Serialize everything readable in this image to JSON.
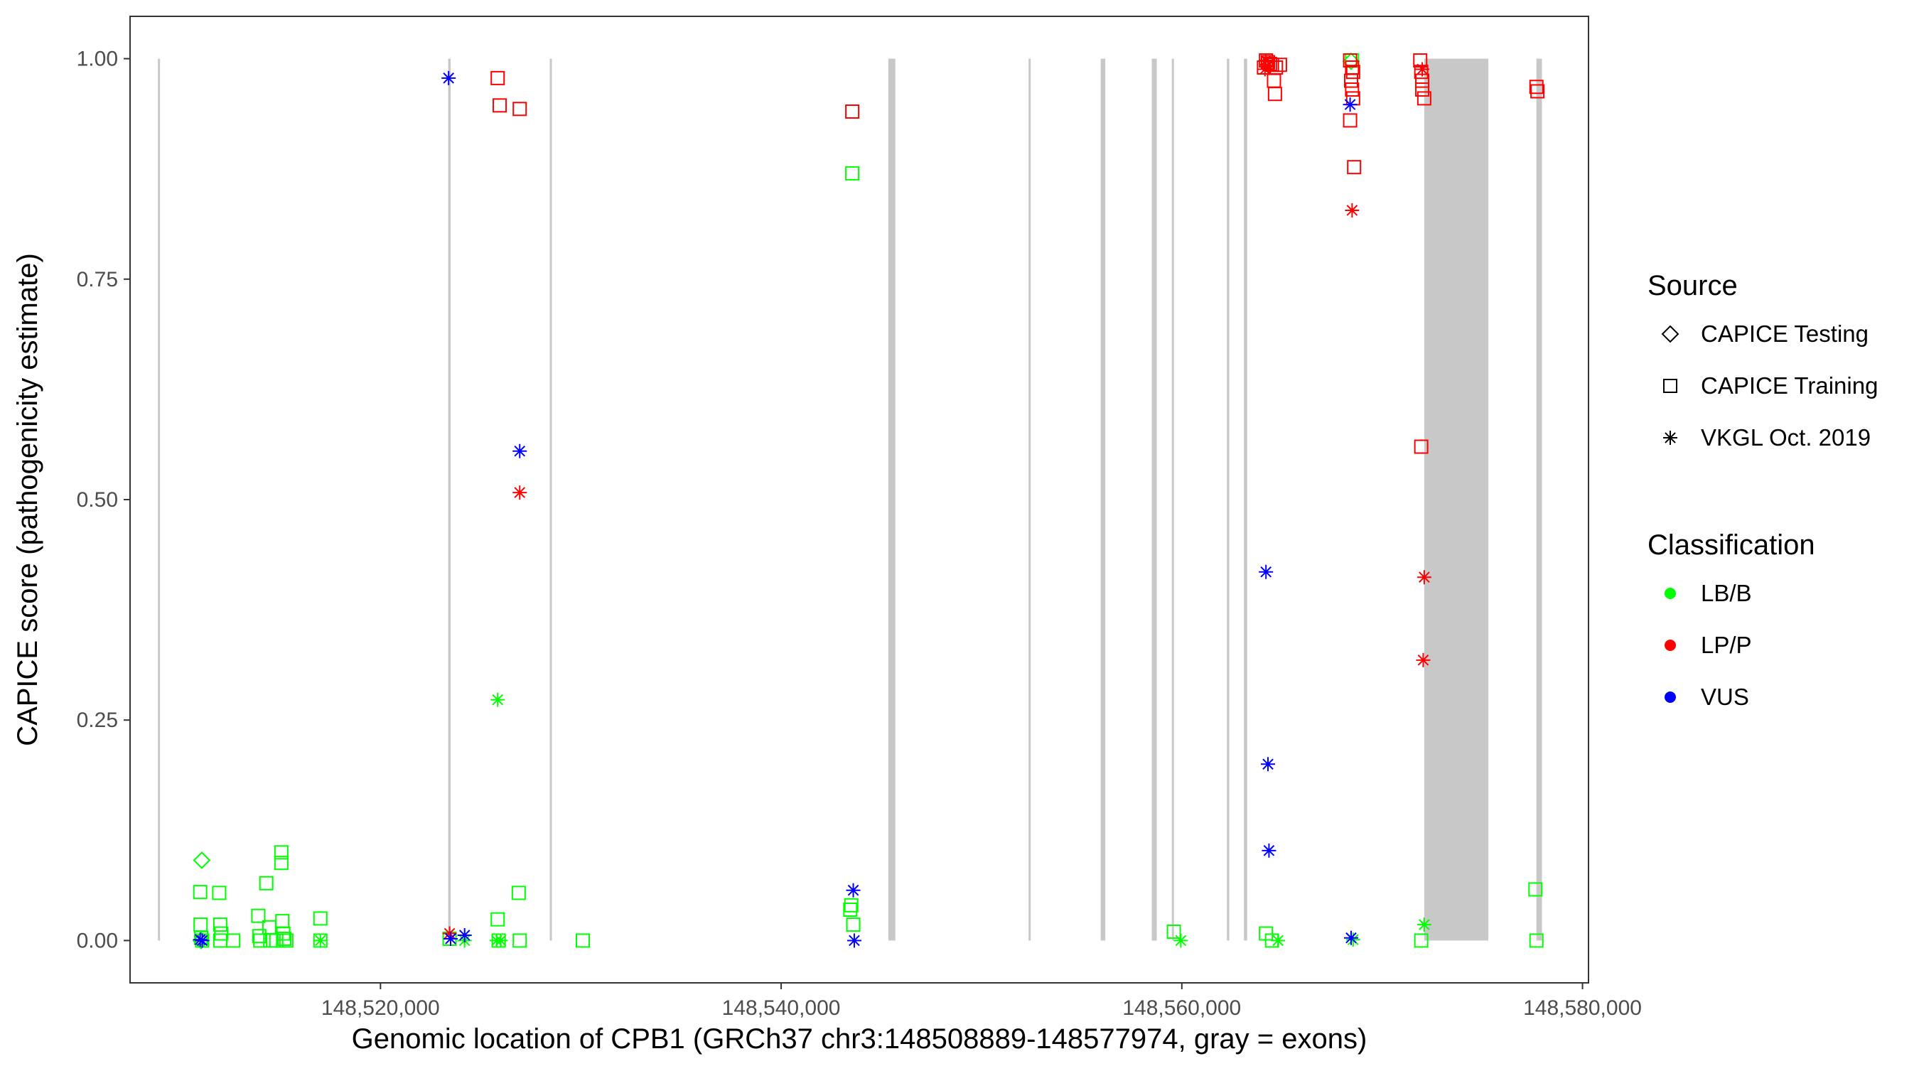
{
  "chart_data": {
    "type": "scatter",
    "title": "",
    "xlabel": "Genomic location of CPB1 (GRCh37 chr3:148508889-148577974, gray = exons)",
    "ylabel": "CAPICE score (pathogenicity estimate)",
    "xlim": [
      148507500,
      148580300
    ],
    "ylim": [
      -0.048,
      1.048
    ],
    "x_ticks": [
      {
        "value": 148520000,
        "label": "148,520,000"
      },
      {
        "value": 148540000,
        "label": "148,540,000"
      },
      {
        "value": 148560000,
        "label": "148,560,000"
      },
      {
        "value": 148580000,
        "label": "148,580,000"
      }
    ],
    "y_ticks": [
      {
        "value": 0.0,
        "label": "0.00"
      },
      {
        "value": 0.25,
        "label": "0.25"
      },
      {
        "value": 0.5,
        "label": "0.50"
      },
      {
        "value": 0.75,
        "label": "0.75"
      },
      {
        "value": 1.0,
        "label": "1.00"
      }
    ],
    "grid": false,
    "exons": [
      [
        148508889,
        148508980
      ],
      [
        148523380,
        148523500
      ],
      [
        148528450,
        148528530
      ],
      [
        148545350,
        148545700
      ],
      [
        148552350,
        148552430
      ],
      [
        148555950,
        148556180
      ],
      [
        148558500,
        148558750
      ],
      [
        148559500,
        148559580
      ],
      [
        148562250,
        148562370
      ],
      [
        148563100,
        148563260
      ],
      [
        148572100,
        148575300
      ],
      [
        148577700,
        148577974
      ]
    ],
    "colors": {
      "LB/B": "#00ff00",
      "LP/P": "#ff0000",
      "VUS": "#0000ff",
      "exon": "#c8c8c8"
    },
    "legend": {
      "placement": "right",
      "source": {
        "title": "Source",
        "entries": [
          {
            "label": "CAPICE Testing",
            "shape": "diamond"
          },
          {
            "label": "CAPICE Training",
            "shape": "square"
          },
          {
            "label": "VKGL Oct. 2019",
            "shape": "asterisk"
          }
        ]
      },
      "classification": {
        "title": "Classification",
        "entries": [
          {
            "label": "LB/B",
            "color": "#00ff00"
          },
          {
            "label": "LP/P",
            "color": "#ff0000"
          },
          {
            "label": "VUS",
            "color": "#0000ff"
          }
        ]
      }
    },
    "series": [
      {
        "source": "CAPICE Testing",
        "class": "LB/B",
        "points": [
          [
            148511080,
            0.091
          ],
          [
            148511050,
            0.0
          ],
          [
            148568450,
            0.997
          ]
        ]
      },
      {
        "source": "CAPICE Training",
        "class": "LB/B",
        "points": [
          [
            148511000,
            0.055
          ],
          [
            148511020,
            0.018
          ],
          [
            148511050,
            0.003
          ],
          [
            148511100,
            0.0
          ],
          [
            148511950,
            0.054
          ],
          [
            148512000,
            0.018
          ],
          [
            148512050,
            0.008
          ],
          [
            148512000,
            0.0
          ],
          [
            148512650,
            0.0
          ],
          [
            148513900,
            0.028
          ],
          [
            148513950,
            0.005
          ],
          [
            148514000,
            0.0
          ],
          [
            148514300,
            0.065
          ],
          [
            148514450,
            0.015
          ],
          [
            148514500,
            0.0
          ],
          [
            148514800,
            0.0
          ],
          [
            148515050,
            0.1
          ],
          [
            148515050,
            0.088
          ],
          [
            148515100,
            0.022
          ],
          [
            148515150,
            0.008
          ],
          [
            148515200,
            0.002
          ],
          [
            148515300,
            0.0
          ],
          [
            148517000,
            0.025
          ],
          [
            148517000,
            0.0
          ],
          [
            148523450,
            0.002
          ],
          [
            148525850,
            0.024
          ],
          [
            148525900,
            0.0
          ],
          [
            148526900,
            0.054
          ],
          [
            148526950,
            0.0
          ],
          [
            148530100,
            0.0
          ],
          [
            148543550,
            0.87
          ],
          [
            148543500,
            0.04
          ],
          [
            148543450,
            0.035
          ],
          [
            148543600,
            0.018
          ],
          [
            148559600,
            0.01
          ],
          [
            148564200,
            0.008
          ],
          [
            148564500,
            0.0
          ],
          [
            148568500,
            0.998
          ],
          [
            148571950,
            0.0
          ],
          [
            148577650,
            0.058
          ],
          [
            148577700,
            0.0
          ]
        ]
      },
      {
        "source": "CAPICE Training",
        "class": "LP/P",
        "points": [
          [
            148525850,
            0.978
          ],
          [
            148525950,
            0.947
          ],
          [
            148526950,
            0.943
          ],
          [
            148543550,
            0.94
          ],
          [
            148564200,
            0.998
          ],
          [
            148564300,
            0.996
          ],
          [
            148564400,
            0.994
          ],
          [
            148564500,
            0.993
          ],
          [
            148564100,
            0.99
          ],
          [
            148564700,
            0.99
          ],
          [
            148564900,
            0.993
          ],
          [
            148564600,
            0.975
          ],
          [
            148564650,
            0.96
          ],
          [
            148568400,
            0.998
          ],
          [
            148568500,
            0.99
          ],
          [
            148568550,
            0.985
          ],
          [
            148568450,
            0.975
          ],
          [
            148568500,
            0.965
          ],
          [
            148568550,
            0.955
          ],
          [
            148568400,
            0.93
          ],
          [
            148568600,
            0.877
          ],
          [
            148571900,
            0.998
          ],
          [
            148571950,
            0.985
          ],
          [
            148572000,
            0.975
          ],
          [
            148572000,
            0.965
          ],
          [
            148572100,
            0.955
          ],
          [
            148571950,
            0.56
          ],
          [
            148577700,
            0.968
          ],
          [
            148577750,
            0.963
          ]
        ]
      },
      {
        "source": "VKGL Oct. 2019",
        "class": "LB/B",
        "points": [
          [
            148517000,
            0.0
          ],
          [
            148525850,
            0.273
          ],
          [
            148525800,
            0.0
          ],
          [
            148526000,
            0.0
          ],
          [
            148524200,
            0.0
          ],
          [
            148559950,
            0.0
          ],
          [
            148564800,
            0.0
          ],
          [
            148568550,
            0.001
          ],
          [
            148572100,
            0.018
          ]
        ]
      },
      {
        "source": "VKGL Oct. 2019",
        "class": "LP/P",
        "points": [
          [
            148523450,
            0.008
          ],
          [
            148526950,
            0.508
          ],
          [
            148564200,
            0.998
          ],
          [
            148564300,
            0.992
          ],
          [
            148564150,
            0.988
          ],
          [
            148568500,
            0.828
          ],
          [
            148572000,
            0.988
          ],
          [
            148572100,
            0.412
          ],
          [
            148572050,
            0.318
          ]
        ]
      },
      {
        "source": "VKGL Oct. 2019",
        "class": "VUS",
        "points": [
          [
            148511100,
            0.0
          ],
          [
            148511000,
            0.001
          ],
          [
            148523400,
            0.978
          ],
          [
            148526950,
            0.555
          ],
          [
            148523500,
            0.002
          ],
          [
            148524200,
            0.006
          ],
          [
            148543600,
            0.057
          ],
          [
            148543650,
            0.0
          ],
          [
            148564200,
            0.418
          ],
          [
            148564300,
            0.2
          ],
          [
            148564350,
            0.102
          ],
          [
            148568400,
            0.948
          ],
          [
            148568450,
            0.003
          ]
        ]
      }
    ]
  }
}
